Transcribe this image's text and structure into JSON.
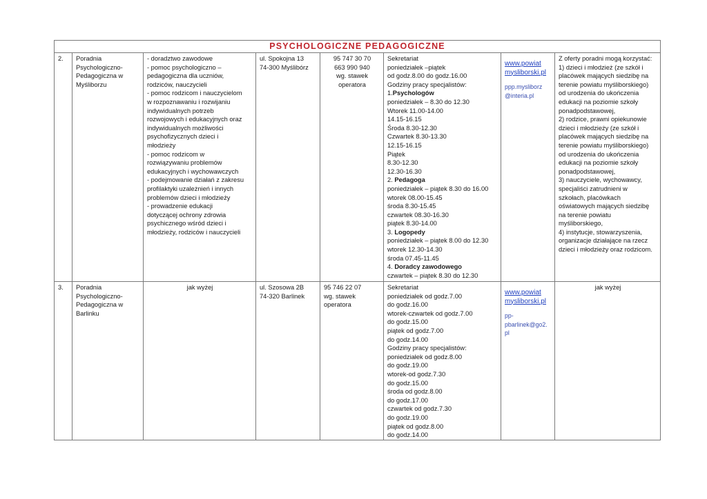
{
  "section_title": "PSYCHOLOGICZNE PEDAGOGICZNE",
  "rows": [
    {
      "number": "2.",
      "name": [
        "Poradnia",
        "Psychologiczno-",
        "Pedagogiczna w",
        "Myśliborzu"
      ],
      "services": [
        "- doradztwo zawodowe",
        "- pomoc psychologiczno –",
        "pedagogiczna dla uczniów,",
        "rodziców, nauczycieli",
        "- pomoc rodzicom i nauczycielom",
        "w rozpoznawaniu i rozwijaniu",
        "indywidualnych potrzeb",
        "rozwojowych i edukacyjnych oraz",
        "indywidualnych możliwości",
        "psychofizycznych dzieci i",
        "młodzieży",
        "- pomoc rodzicom w",
        "rozwiązywaniu problemów",
        "edukacyjnych i wychowawczych",
        "- podejmowanie działań z zakresu",
        "profilaktyki uzależnień i innych",
        "problemów dzieci i młodzieży",
        "- prowadzenie edukacji",
        "dotyczącej ochrony zdrowia",
        "psychicznego wśród dzieci i",
        "młodzieży, rodziców i nauczycieli"
      ],
      "address": [
        "ul. Spokojna 13",
        "74-300 Myślibórz"
      ],
      "phone": [
        "95 747 30 70",
        "663 990 940",
        "wg. stawek",
        "operatora"
      ],
      "hours": [
        {
          "t": "Sekretariat"
        },
        {
          "t": "poniedziałek –piątek"
        },
        {
          "t": "od godz.8.00 do godz.16.00"
        },
        {
          "t": "Godziny pracy specjalistów:"
        },
        {
          "t": "1.",
          "b": "Psychologów"
        },
        {
          "t": "poniedziałek – 8.30 do 12.30"
        },
        {
          "t": "Wtorek 11.00-14.00"
        },
        {
          "t": "14.15-16.15"
        },
        {
          "t": "Środa 8.30-12.30"
        },
        {
          "t": "Czwartek 8.30-13.30"
        },
        {
          "t": "12.15-16.15"
        },
        {
          "t": "Piątek"
        },
        {
          "t": "8.30-12.30"
        },
        {
          "t": "12.30-16.30"
        },
        {
          "t": "2. ",
          "b": "Pedagoga"
        },
        {
          "t": "poniedziałek – piątek 8.30 do 16.00"
        },
        {
          "t": "wtorek 08.00-15.45"
        },
        {
          "t": "środa 8.30-15.45"
        },
        {
          "t": "czwartek 08.30-16.30"
        },
        {
          "t": "piątek 8.30-14.00"
        },
        {
          "t": "3. ",
          "b": "Logopedy"
        },
        {
          "t": "poniedziałek – piątek 8.00 do 12.30"
        },
        {
          "t": "wtorek 12.30-14.30"
        },
        {
          "t": "środa 07.45-11.45"
        },
        {
          "t": "4. ",
          "b": "Doradcy zawodowego"
        },
        {
          "t": "czwartek – piątek 8.30 do 12.30"
        }
      ],
      "website": [
        "www.powiat",
        "mysliborski.pl"
      ],
      "email": [
        "ppp.mysliborz",
        "@interia.pl"
      ],
      "eligibility": [
        "Z oferty poradni mogą korzystać:",
        "1) dzieci i młodzież (ze szkół i",
        "placówek mających siedzibę na",
        "terenie powiatu myśliborskiego)",
        "od urodzenia do ukończenia",
        "edukacji na poziomie szkoły",
        "ponadpodstawowej,",
        "2) rodzice, prawni opiekunowie",
        "dzieci i młodzieży (ze szkół i",
        "placówek mających siedzibę na",
        "terenie powiatu myśliborskiego)",
        "od urodzenia do ukończenia",
        "edukacji na poziomie szkoły",
        "ponadpodstawowej,",
        "3) nauczyciele, wychowawcy,",
        "specjaliści zatrudnieni w",
        "szkołach, placówkach",
        "oświatowych mających siedzibę",
        "na terenie powiatu",
        "myśliborskiego,",
        "4) instytucje, stowarzyszenia,",
        "organizacje działające na rzecz",
        "dzieci i młodzieży oraz rodzicom."
      ]
    },
    {
      "number": "3.",
      "name": [
        "Poradnia",
        "Psychologiczno-",
        "Pedagogiczna w",
        "Barlinku"
      ],
      "services": [
        "jak wyżej"
      ],
      "address": [
        "ul. Szosowa 2B",
        "74-320 Barlinek"
      ],
      "phone": [
        "95 746 22 07",
        "wg. stawek",
        "operatora"
      ],
      "hours": [
        {
          "t": "Sekretariat"
        },
        {
          "t": "poniedziałek  od godz.7.00"
        },
        {
          "t": "do godz.16.00"
        },
        {
          "t": "wtorek-czwartek  od godz.7.00"
        },
        {
          "t": "do godz.15.00"
        },
        {
          "t": " piątek od godz.7.00"
        },
        {
          "t": "do godz.14.00"
        },
        {
          "t": "Godziny pracy specjalistów:"
        },
        {
          "t": "poniedziałek  od godz.8.00"
        },
        {
          "t": "do godz.19.00"
        },
        {
          "t": "wtorek-od godz.7.30"
        },
        {
          "t": "do godz.15.00"
        },
        {
          "t": "środa od godz.8.00"
        },
        {
          "t": "do godz.17.00"
        },
        {
          "t": "czwartek  od godz.7.30"
        },
        {
          "t": "do godz.19.00"
        },
        {
          "t": " piątek od godz.8.00"
        },
        {
          "t": "do godz.14.00"
        }
      ],
      "website": [
        "www.powiat",
        "mysliborski.pl"
      ],
      "email": [
        "pp-",
        "pbarlinek@go2.",
        "pl"
      ],
      "eligibility": [
        "jak wyżej"
      ]
    }
  ]
}
